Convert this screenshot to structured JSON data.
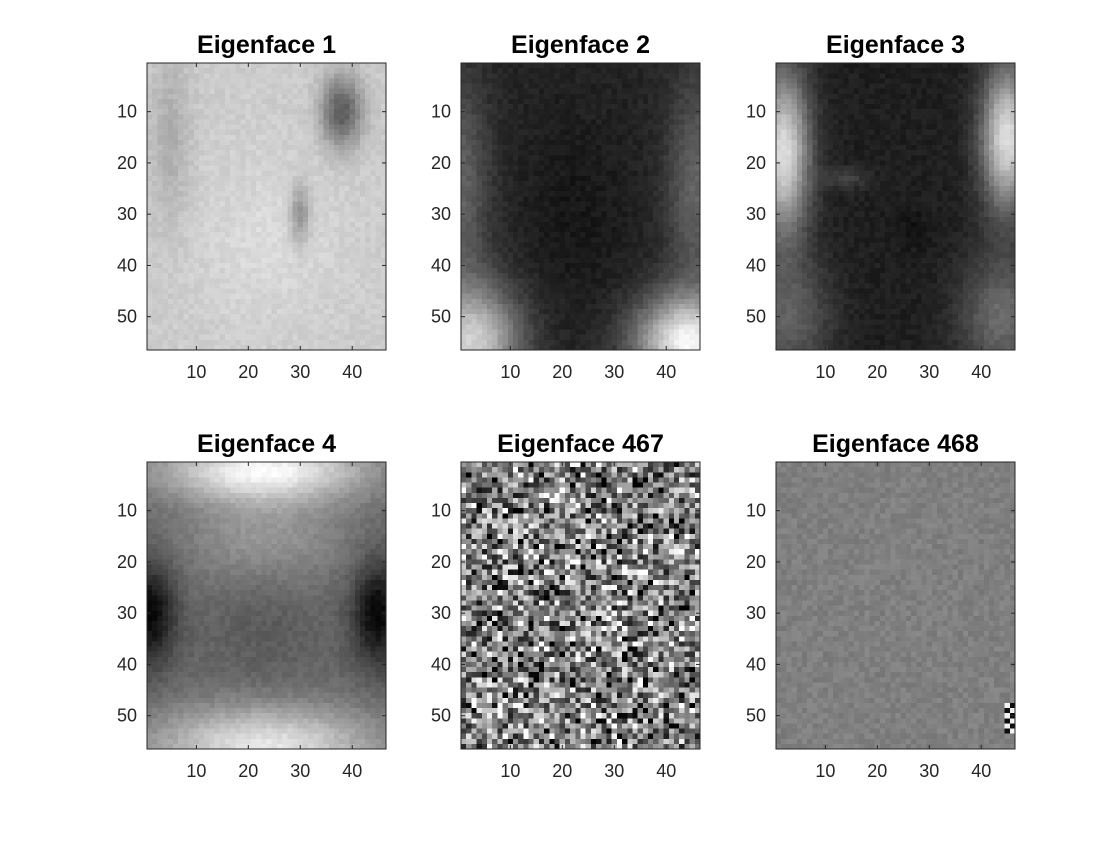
{
  "figure": {
    "background": "#ffffff",
    "colormap": "gray",
    "axes_color": "#262626"
  },
  "chart_data": [
    {
      "type": "heatmap",
      "title": "Eigenface 1",
      "xlabel": "",
      "ylabel": "",
      "image_size": [
        56,
        46
      ],
      "xlim": [
        0.5,
        46.5
      ],
      "ylim": [
        0.5,
        56.5
      ],
      "y_direction": "reverse",
      "xticks": [
        10,
        20,
        30,
        40
      ],
      "yticks": [
        10,
        20,
        30,
        40,
        50
      ],
      "pattern": "face",
      "appearance": "light face on lighter background, dark patch upper right"
    },
    {
      "type": "heatmap",
      "title": "Eigenface 2",
      "xlabel": "",
      "ylabel": "",
      "image_size": [
        56,
        46
      ],
      "xlim": [
        0.5,
        46.5
      ],
      "ylim": [
        0.5,
        56.5
      ],
      "y_direction": "reverse",
      "xticks": [
        10,
        20,
        30,
        40
      ],
      "yticks": [
        10,
        20,
        30,
        40,
        50
      ],
      "pattern": "face",
      "appearance": "dark face, light lower corners"
    },
    {
      "type": "heatmap",
      "title": "Eigenface 3",
      "xlabel": "",
      "ylabel": "",
      "image_size": [
        56,
        46
      ],
      "xlim": [
        0.5,
        46.5
      ],
      "ylim": [
        0.5,
        56.5
      ],
      "y_direction": "reverse",
      "xticks": [
        10,
        20,
        30,
        40
      ],
      "yticks": [
        10,
        20,
        30,
        40,
        50
      ],
      "pattern": "face",
      "appearance": "dark face, light vertical bands at sides"
    },
    {
      "type": "heatmap",
      "title": "Eigenface 4",
      "xlabel": "",
      "ylabel": "",
      "image_size": [
        56,
        46
      ],
      "xlim": [
        0.5,
        46.5
      ],
      "ylim": [
        0.5,
        56.5
      ],
      "y_direction": "reverse",
      "xticks": [
        10,
        20,
        30,
        40
      ],
      "yticks": [
        10,
        20,
        30,
        40,
        50
      ],
      "pattern": "face",
      "appearance": "medium face, light halo, dark sides at mid height"
    },
    {
      "type": "heatmap",
      "title": "Eigenface 467",
      "xlabel": "",
      "ylabel": "",
      "image_size": [
        56,
        46
      ],
      "xlim": [
        0.5,
        46.5
      ],
      "ylim": [
        0.5,
        56.5
      ],
      "y_direction": "reverse",
      "xticks": [
        10,
        20,
        30,
        40
      ],
      "yticks": [
        10,
        20,
        30,
        40,
        50
      ],
      "pattern": "noise",
      "appearance": "high-contrast random noise"
    },
    {
      "type": "heatmap",
      "title": "Eigenface 468",
      "xlabel": "",
      "ylabel": "",
      "image_size": [
        56,
        46
      ],
      "xlim": [
        0.5,
        46.5
      ],
      "ylim": [
        0.5,
        56.5
      ],
      "y_direction": "reverse",
      "xticks": [
        10,
        20,
        30,
        40
      ],
      "yticks": [
        10,
        20,
        30,
        40,
        50
      ],
      "pattern": "flat-noise",
      "appearance": "nearly uniform gray, few high-contrast pixels at right edge near row 50"
    }
  ]
}
